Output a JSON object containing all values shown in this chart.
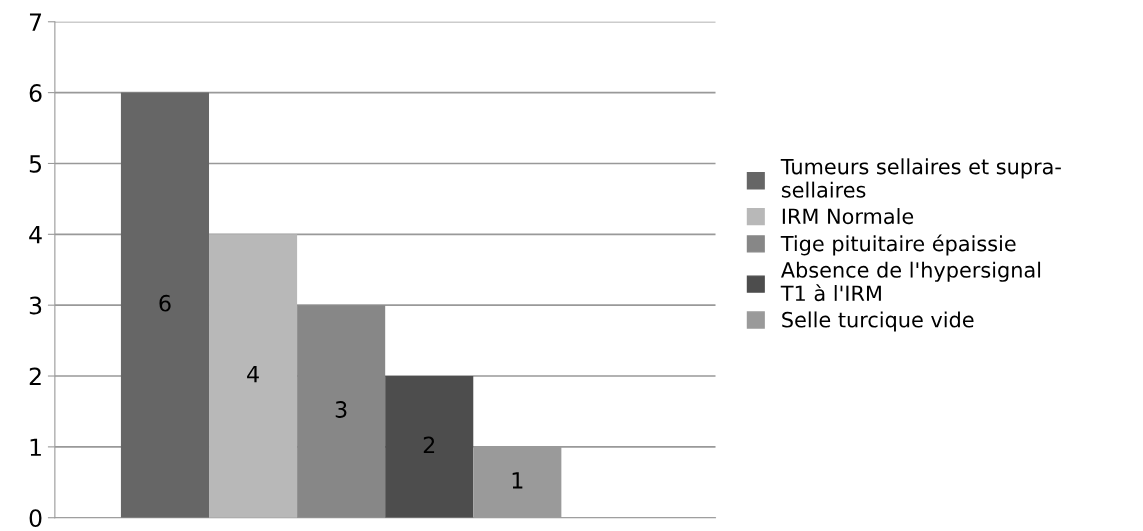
{
  "chart_data": {
    "type": "bar",
    "categories": [
      null
    ],
    "series": [
      {
        "name": "Tumeurs sellaires et supra-\nsellaires",
        "color": "#666666",
        "values": [
          6
        ]
      },
      {
        "name": "IRM Normale",
        "color": "#b8b8b8",
        "values": [
          4
        ]
      },
      {
        "name": "Tige pituitaire épaissie",
        "color": "#878787",
        "values": [
          3
        ]
      },
      {
        "name": "Absence de l'hypersignal\nT1 à l'IRM",
        "color": "#4d4d4d",
        "values": [
          2
        ]
      },
      {
        "name": "Selle turcique vide",
        "color": "#9a9a9a",
        "values": [
          1
        ]
      }
    ],
    "ylim": [
      0,
      7
    ],
    "yticks": [
      0,
      1,
      2,
      3,
      4,
      5,
      6,
      7
    ],
    "grid": "y",
    "legend": "right",
    "data_labels": true
  }
}
